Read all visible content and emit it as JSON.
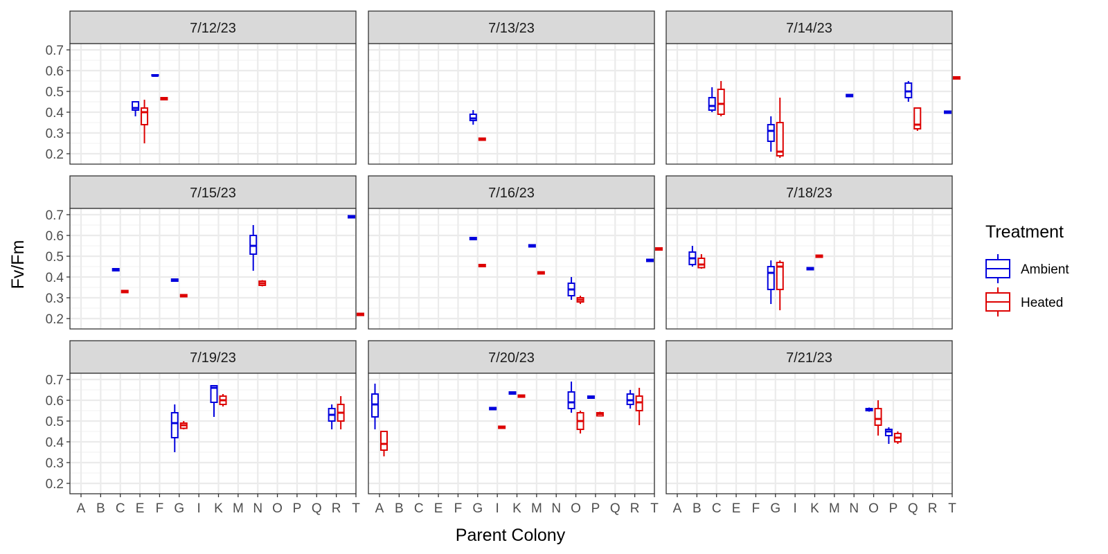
{
  "chart_data": {
    "type": "boxplot",
    "facet_layout": "3x3 grid, shared axes",
    "x_categories": [
      "A",
      "B",
      "C",
      "E",
      "F",
      "G",
      "I",
      "K",
      "M",
      "N",
      "O",
      "P",
      "Q",
      "R",
      "T"
    ],
    "x_axis_ticks": [
      "A",
      "B",
      "C",
      "E",
      "F",
      "G",
      "I",
      "K",
      "M",
      "N",
      "O",
      "P",
      "Q",
      "R",
      "T"
    ],
    "y_ticks": [
      "0.2",
      "0.3",
      "0.4",
      "0.5",
      "0.6",
      "0.7"
    ],
    "ylim": [
      0.15,
      0.73
    ],
    "xlabel": "Parent Colony",
    "ylabel": "Fv/Fm",
    "grid": true,
    "legend": {
      "title": "Treatment",
      "position": "right",
      "entries": [
        {
          "label": "Ambient",
          "color": "#0000dd"
        },
        {
          "label": "Heated",
          "color": "#dd0000"
        }
      ]
    },
    "panels": [
      {
        "title": "7/12/23",
        "boxes": [
          {
            "cat": "E",
            "treatment": "Ambient",
            "min": 0.38,
            "q1": 0.41,
            "median": 0.42,
            "q3": 0.45,
            "max": 0.45
          },
          {
            "cat": "E",
            "treatment": "Heated",
            "min": 0.25,
            "q1": 0.34,
            "median": 0.4,
            "q3": 0.42,
            "max": 0.46
          },
          {
            "cat": "F",
            "treatment": "Ambient",
            "min": 0.575,
            "q1": 0.575,
            "median": 0.575,
            "q3": 0.58,
            "max": 0.58
          },
          {
            "cat": "F",
            "treatment": "Heated",
            "min": 0.46,
            "q1": 0.46,
            "median": 0.465,
            "q3": 0.47,
            "max": 0.47
          }
        ]
      },
      {
        "title": "7/13/23",
        "boxes": [
          {
            "cat": "G",
            "treatment": "Ambient",
            "min": 0.34,
            "q1": 0.36,
            "median": 0.37,
            "q3": 0.39,
            "max": 0.41
          },
          {
            "cat": "G",
            "treatment": "Heated",
            "min": 0.265,
            "q1": 0.265,
            "median": 0.27,
            "q3": 0.275,
            "max": 0.275
          }
        ]
      },
      {
        "title": "7/14/23",
        "boxes": [
          {
            "cat": "C",
            "treatment": "Ambient",
            "min": 0.4,
            "q1": 0.41,
            "median": 0.43,
            "q3": 0.47,
            "max": 0.52
          },
          {
            "cat": "C",
            "treatment": "Heated",
            "min": 0.38,
            "q1": 0.39,
            "median": 0.44,
            "q3": 0.51,
            "max": 0.55
          },
          {
            "cat": "G",
            "treatment": "Ambient",
            "min": 0.21,
            "q1": 0.26,
            "median": 0.31,
            "q3": 0.34,
            "max": 0.38
          },
          {
            "cat": "G",
            "treatment": "Heated",
            "min": 0.18,
            "q1": 0.19,
            "median": 0.21,
            "q3": 0.35,
            "max": 0.47
          },
          {
            "cat": "N",
            "treatment": "Ambient",
            "min": 0.475,
            "q1": 0.475,
            "median": 0.48,
            "q3": 0.485,
            "max": 0.485
          },
          {
            "cat": "Q",
            "treatment": "Ambient",
            "min": 0.45,
            "q1": 0.47,
            "median": 0.5,
            "q3": 0.54,
            "max": 0.55
          },
          {
            "cat": "Q",
            "treatment": "Heated",
            "min": 0.31,
            "q1": 0.32,
            "median": 0.34,
            "q3": 0.42,
            "max": 0.42
          },
          {
            "cat": "T",
            "treatment": "Ambient",
            "min": 0.395,
            "q1": 0.395,
            "median": 0.4,
            "q3": 0.405,
            "max": 0.405
          },
          {
            "cat": "T",
            "treatment": "Heated",
            "min": 0.56,
            "q1": 0.56,
            "median": 0.565,
            "q3": 0.57,
            "max": 0.57
          }
        ]
      },
      {
        "title": "7/15/23",
        "boxes": [
          {
            "cat": "C",
            "treatment": "Ambient",
            "min": 0.43,
            "q1": 0.43,
            "median": 0.435,
            "q3": 0.44,
            "max": 0.44
          },
          {
            "cat": "C",
            "treatment": "Heated",
            "min": 0.325,
            "q1": 0.325,
            "median": 0.33,
            "q3": 0.335,
            "max": 0.335
          },
          {
            "cat": "G",
            "treatment": "Ambient",
            "min": 0.38,
            "q1": 0.38,
            "median": 0.385,
            "q3": 0.39,
            "max": 0.39
          },
          {
            "cat": "G",
            "treatment": "Heated",
            "min": 0.305,
            "q1": 0.305,
            "median": 0.31,
            "q3": 0.315,
            "max": 0.315
          },
          {
            "cat": "N",
            "treatment": "Ambient",
            "min": 0.43,
            "q1": 0.51,
            "median": 0.55,
            "q3": 0.6,
            "max": 0.65
          },
          {
            "cat": "N",
            "treatment": "Heated",
            "min": 0.355,
            "q1": 0.36,
            "median": 0.37,
            "q3": 0.38,
            "max": 0.385
          },
          {
            "cat": "T",
            "treatment": "Ambient",
            "min": 0.685,
            "q1": 0.685,
            "median": 0.69,
            "q3": 0.695,
            "max": 0.695
          },
          {
            "cat": "T",
            "treatment": "Heated",
            "min": 0.215,
            "q1": 0.215,
            "median": 0.22,
            "q3": 0.225,
            "max": 0.225
          }
        ]
      },
      {
        "title": "7/16/23",
        "boxes": [
          {
            "cat": "G",
            "treatment": "Ambient",
            "min": 0.58,
            "q1": 0.58,
            "median": 0.585,
            "q3": 0.59,
            "max": 0.59
          },
          {
            "cat": "G",
            "treatment": "Heated",
            "min": 0.45,
            "q1": 0.45,
            "median": 0.455,
            "q3": 0.46,
            "max": 0.46
          },
          {
            "cat": "M",
            "treatment": "Ambient",
            "min": 0.545,
            "q1": 0.545,
            "median": 0.55,
            "q3": 0.555,
            "max": 0.555
          },
          {
            "cat": "M",
            "treatment": "Heated",
            "min": 0.415,
            "q1": 0.415,
            "median": 0.42,
            "q3": 0.425,
            "max": 0.425
          },
          {
            "cat": "O",
            "treatment": "Ambient",
            "min": 0.29,
            "q1": 0.31,
            "median": 0.34,
            "q3": 0.37,
            "max": 0.4
          },
          {
            "cat": "O",
            "treatment": "Heated",
            "min": 0.27,
            "q1": 0.28,
            "median": 0.29,
            "q3": 0.3,
            "max": 0.31
          },
          {
            "cat": "T",
            "treatment": "Ambient",
            "min": 0.475,
            "q1": 0.475,
            "median": 0.48,
            "q3": 0.485,
            "max": 0.485
          },
          {
            "cat": "T",
            "treatment": "Heated",
            "min": 0.53,
            "q1": 0.53,
            "median": 0.535,
            "q3": 0.54,
            "max": 0.54
          }
        ]
      },
      {
        "title": "7/18/23",
        "boxes": [
          {
            "cat": "B",
            "treatment": "Ambient",
            "min": 0.45,
            "q1": 0.46,
            "median": 0.49,
            "q3": 0.52,
            "max": 0.55
          },
          {
            "cat": "B",
            "treatment": "Heated",
            "min": 0.44,
            "q1": 0.445,
            "median": 0.46,
            "q3": 0.49,
            "max": 0.51
          },
          {
            "cat": "G",
            "treatment": "Ambient",
            "min": 0.27,
            "q1": 0.34,
            "median": 0.42,
            "q3": 0.45,
            "max": 0.48
          },
          {
            "cat": "G",
            "treatment": "Heated",
            "min": 0.24,
            "q1": 0.34,
            "median": 0.45,
            "q3": 0.47,
            "max": 0.48
          },
          {
            "cat": "K",
            "treatment": "Ambient",
            "min": 0.435,
            "q1": 0.435,
            "median": 0.44,
            "q3": 0.445,
            "max": 0.445
          },
          {
            "cat": "K",
            "treatment": "Heated",
            "min": 0.495,
            "q1": 0.495,
            "median": 0.5,
            "q3": 0.505,
            "max": 0.505
          }
        ]
      },
      {
        "title": "7/19/23",
        "boxes": [
          {
            "cat": "G",
            "treatment": "Ambient",
            "min": 0.35,
            "q1": 0.42,
            "median": 0.49,
            "q3": 0.54,
            "max": 0.58
          },
          {
            "cat": "G",
            "treatment": "Heated",
            "min": 0.46,
            "q1": 0.465,
            "median": 0.48,
            "q3": 0.49,
            "max": 0.5
          },
          {
            "cat": "K",
            "treatment": "Ambient",
            "min": 0.52,
            "q1": 0.59,
            "median": 0.66,
            "q3": 0.67,
            "max": 0.67
          },
          {
            "cat": "K",
            "treatment": "Heated",
            "min": 0.57,
            "q1": 0.58,
            "median": 0.6,
            "q3": 0.62,
            "max": 0.63
          },
          {
            "cat": "R",
            "treatment": "Ambient",
            "min": 0.46,
            "q1": 0.5,
            "median": 0.53,
            "q3": 0.56,
            "max": 0.58
          },
          {
            "cat": "R",
            "treatment": "Heated",
            "min": 0.46,
            "q1": 0.5,
            "median": 0.54,
            "q3": 0.58,
            "max": 0.62
          }
        ]
      },
      {
        "title": "7/20/23",
        "boxes": [
          {
            "cat": "A",
            "treatment": "Ambient",
            "min": 0.46,
            "q1": 0.52,
            "median": 0.58,
            "q3": 0.63,
            "max": 0.68
          },
          {
            "cat": "A",
            "treatment": "Heated",
            "min": 0.33,
            "q1": 0.36,
            "median": 0.39,
            "q3": 0.45,
            "max": 0.45
          },
          {
            "cat": "I",
            "treatment": "Ambient",
            "min": 0.555,
            "q1": 0.555,
            "median": 0.56,
            "q3": 0.565,
            "max": 0.565
          },
          {
            "cat": "I",
            "treatment": "Heated",
            "min": 0.465,
            "q1": 0.465,
            "median": 0.47,
            "q3": 0.475,
            "max": 0.475
          },
          {
            "cat": "K",
            "treatment": "Ambient",
            "min": 0.63,
            "q1": 0.63,
            "median": 0.635,
            "q3": 0.64,
            "max": 0.64
          },
          {
            "cat": "K",
            "treatment": "Heated",
            "min": 0.615,
            "q1": 0.615,
            "median": 0.62,
            "q3": 0.625,
            "max": 0.625
          },
          {
            "cat": "O",
            "treatment": "Ambient",
            "min": 0.54,
            "q1": 0.56,
            "median": 0.59,
            "q3": 0.64,
            "max": 0.69
          },
          {
            "cat": "O",
            "treatment": "Heated",
            "min": 0.44,
            "q1": 0.46,
            "median": 0.5,
            "q3": 0.54,
            "max": 0.55
          },
          {
            "cat": "P",
            "treatment": "Ambient",
            "min": 0.61,
            "q1": 0.61,
            "median": 0.615,
            "q3": 0.62,
            "max": 0.62
          },
          {
            "cat": "P",
            "treatment": "Heated",
            "min": 0.525,
            "q1": 0.525,
            "median": 0.535,
            "q3": 0.54,
            "max": 0.545
          },
          {
            "cat": "R",
            "treatment": "Ambient",
            "min": 0.56,
            "q1": 0.58,
            "median": 0.6,
            "q3": 0.63,
            "max": 0.65
          },
          {
            "cat": "R",
            "treatment": "Heated",
            "min": 0.48,
            "q1": 0.55,
            "median": 0.59,
            "q3": 0.62,
            "max": 0.66
          }
        ]
      },
      {
        "title": "7/21/23",
        "boxes": [
          {
            "cat": "O",
            "treatment": "Ambient",
            "min": 0.545,
            "q1": 0.55,
            "median": 0.555,
            "q3": 0.56,
            "max": 0.565
          },
          {
            "cat": "O",
            "treatment": "Heated",
            "min": 0.43,
            "q1": 0.48,
            "median": 0.51,
            "q3": 0.56,
            "max": 0.6
          },
          {
            "cat": "P",
            "treatment": "Ambient",
            "min": 0.39,
            "q1": 0.43,
            "median": 0.45,
            "q3": 0.46,
            "max": 0.47
          },
          {
            "cat": "P",
            "treatment": "Heated",
            "min": 0.39,
            "q1": 0.4,
            "median": 0.42,
            "q3": 0.44,
            "max": 0.45
          }
        ]
      }
    ]
  }
}
